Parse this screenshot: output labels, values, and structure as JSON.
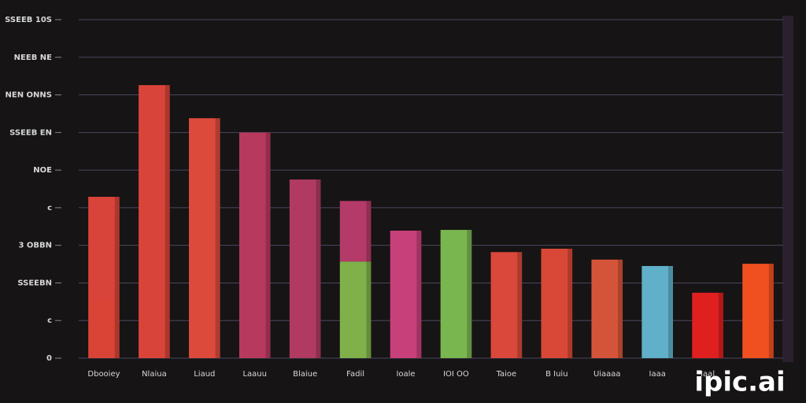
{
  "chart_data": {
    "type": "bar",
    "categories": [
      "Dbooiey",
      "Nlaiua",
      "Liaud",
      "Laauu",
      "Blaiue",
      "Fadil",
      "Ioale",
      "IOI OO",
      "Taioe",
      "B Iuiu",
      "Uiaaaa",
      "Iaaa",
      "Iaal",
      null
    ],
    "series": [
      {
        "colors": [
          "#d94436",
          "#d9443a",
          "#dc4a3c",
          "#b8395e",
          "#b03a62",
          "#7fb04a",
          "#c8407a",
          "#7ab650",
          "#d9483a",
          "#d94836",
          "#d4543a",
          "#5fb0c8",
          "#e01f1f",
          "#f05020"
        ],
        "values": [
          1.57,
          7.26,
          6.38,
          6.0,
          4.75,
          2.57,
          3.39,
          3.41,
          2.82,
          2.91,
          2.62,
          2.45,
          1.74,
          2.51
        ]
      },
      {
        "colors": [
          "#d9443a",
          null,
          null,
          null,
          null,
          "#b43a6a",
          null,
          null,
          null,
          null,
          null,
          null,
          null,
          null
        ],
        "values": [
          2.72,
          null,
          null,
          null,
          null,
          1.61,
          null,
          null,
          null,
          null,
          null,
          null,
          null,
          null
        ]
      }
    ],
    "ylim": [
      0,
      9
    ],
    "yticks": [
      {
        "value": 0,
        "label": "0"
      },
      {
        "value": 1,
        "label": "c"
      },
      {
        "value": 2,
        "label": "SSEEBN"
      },
      {
        "value": 3,
        "label": "3 OBBN"
      },
      {
        "value": 4,
        "label": "c"
      },
      {
        "value": 5,
        "label": "NOE"
      },
      {
        "value": 6,
        "label": "SSEEB EN"
      },
      {
        "value": 7,
        "label": "NEN ONNS"
      },
      {
        "value": 8,
        "label": "NEEB NE"
      },
      {
        "value": 9,
        "label": "SSEEB 10S"
      }
    ],
    "grid": true,
    "watermark": "ipic.ai"
  }
}
